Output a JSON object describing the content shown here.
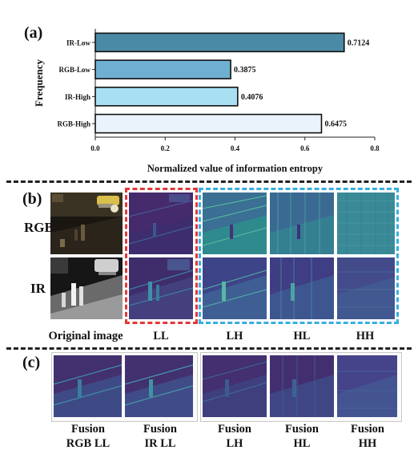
{
  "panel_a": {
    "label": "(a)"
  },
  "panel_b": {
    "label": "(b)",
    "row_rgb": "RGB",
    "row_ir": "IR",
    "captions": {
      "original": "Original image",
      "ll": "LL",
      "lh": "LH",
      "hl": "HL",
      "hh": "HH"
    }
  },
  "panel_c": {
    "label": "(c)",
    "captions": [
      {
        "line1": "Fusion",
        "line2": "RGB LL"
      },
      {
        "line1": "Fusion",
        "line2": "IR LL"
      },
      {
        "line1": "Fusion",
        "line2": "LH"
      },
      {
        "line1": "Fusion",
        "line2": "HL"
      },
      {
        "line1": "Fusion",
        "line2": "HH"
      }
    ]
  },
  "colors": {
    "ll_box": "#e23838",
    "high_box": "#38aee0",
    "bar_ir_low": "#4a8aa6",
    "bar_rgb_low": "#6fb0d2",
    "bar_ir_high": "#a8dff3",
    "bar_rgb_high": "#eaf3fb"
  },
  "chart_data": {
    "type": "bar",
    "orientation": "horizontal",
    "categories": [
      "IR-Low",
      "RGB-Low",
      "IR-High",
      "RGB-High"
    ],
    "values": [
      0.7124,
      0.3875,
      0.4076,
      0.6475
    ],
    "value_labels": [
      "0.7124",
      "0.3875",
      "0.4076",
      "0.6475"
    ],
    "xlabel": "Normalized value of information entropy",
    "ylabel": "Frequency",
    "xlim": [
      0,
      0.8
    ],
    "xticks": [
      "0.0",
      "0.2",
      "0.4",
      "0.6",
      "0.8"
    ],
    "grid": false
  }
}
